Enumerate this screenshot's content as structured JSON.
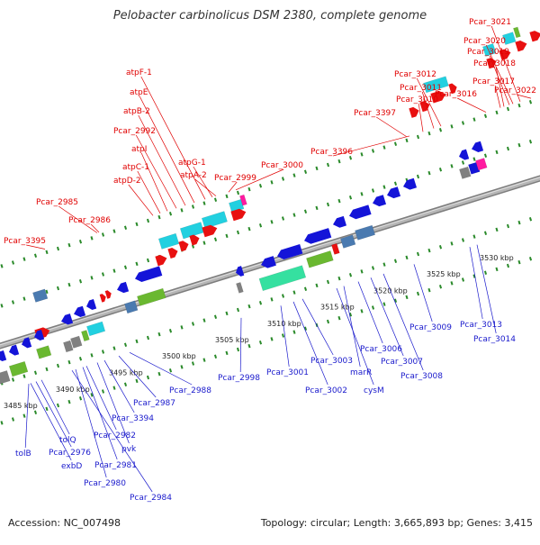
{
  "title": "Pelobacter carbinolicus DSM 2380, complete genome",
  "footer": {
    "accession": "Accession: NC_007498",
    "topology": "Topology: circular; Length: 3,665,893 bp; Genes: 3,415"
  },
  "colors": {
    "backbone": "#9a9a9a",
    "tick_dots": "#2a8a2a",
    "forward_label": "#e00000",
    "reverse_label": "#1a1acc",
    "scale_label": "#222222",
    "forward_arrow": "#e81010",
    "reverse_arrow": "#1414d8",
    "cyan_box": "#22d0e0",
    "pink_box": "#ff1aa0",
    "green_box": "#6ab830",
    "mint_box": "#35e0a0",
    "steel_box": "#4a7ab0",
    "gray_box": "#808080"
  },
  "scale_ticks": [
    "3485 kbp",
    "3490 kbp",
    "3495 kbp",
    "3500 kbp",
    "3505 kbp",
    "3510 kbp",
    "3515 kbp",
    "3520 kbp",
    "3525 kbp",
    "3530 kbp"
  ],
  "forward_genes": [
    "Pcar_3021",
    "Pcar_3020",
    "Pcar_3019",
    "Pcar_3018",
    "Pcar_3017",
    "Pcar_3016",
    "Pcar_3022",
    "Pcar_3012",
    "Pcar_3011",
    "Pcar_3010",
    "Pcar_3397",
    "Pcar_3396",
    "atpF-1",
    "atpE",
    "atpB-2",
    "Pcar_2992",
    "atpI",
    "atpC-1",
    "atpD-2",
    "atpG-1",
    "atpA-2",
    "Pcar_3000",
    "Pcar_2999",
    "Pcar_2985",
    "Pcar_2986",
    "Pcar_3395"
  ],
  "reverse_genes": [
    "Pcar_3013",
    "Pcar_3014",
    "Pcar_3009",
    "Pcar_3008",
    "Pcar_3007",
    "Pcar_3006",
    "marR",
    "cysM",
    "Pcar_3003",
    "Pcar_3002",
    "Pcar_3001",
    "Pcar_2998",
    "Pcar_2988",
    "Pcar_2987",
    "Pcar_3394",
    "pvk",
    "Pcar_2982",
    "Pcar_2981",
    "Pcar_2980",
    "Pcar_2984",
    "tolQ",
    "Pcar_2976",
    "exbD",
    "tolB"
  ]
}
